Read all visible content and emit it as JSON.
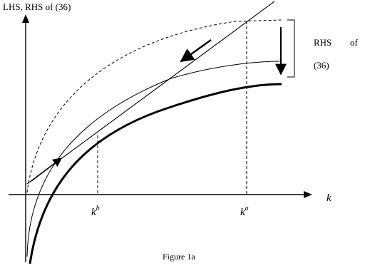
{
  "diagram": {
    "y_axis_label": "LHS, RHS of (36)",
    "x_axis_label": "k",
    "brace_label_line1": "RHS",
    "brace_label_of": "of",
    "brace_label_line2": "(36)",
    "k_b_base": "k",
    "k_b_sup": "b",
    "k_a_base": "k",
    "k_a_sup": "a",
    "caption": "Figure 1a",
    "colors": {
      "ink": "#000000"
    }
  }
}
